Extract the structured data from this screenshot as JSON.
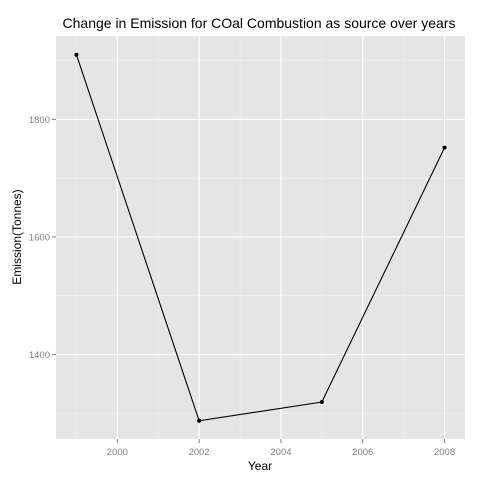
{
  "chart_data": {
    "type": "line",
    "title": "Change in Emission for COal Combustion as source over years",
    "xlabel": "Year",
    "ylabel": "Emission(Tonnes)",
    "x": [
      1999,
      2002,
      2005,
      2008
    ],
    "values": [
      1910,
      1287,
      1319,
      1752
    ],
    "xlim": [
      1998.5,
      2008.5
    ],
    "ylim": [
      1256,
      1942
    ],
    "x_ticks": [
      "2000",
      "2002",
      "2004",
      "2006",
      "2008"
    ],
    "y_ticks": [
      "1400",
      "1600",
      "1800"
    ],
    "grid": true,
    "legend": "none",
    "colors": {
      "panel": "#e5e5e5",
      "grid_major": "#ffffff",
      "grid_minor": "#f2f2f2",
      "line": "#000000",
      "points": "#000000"
    }
  }
}
